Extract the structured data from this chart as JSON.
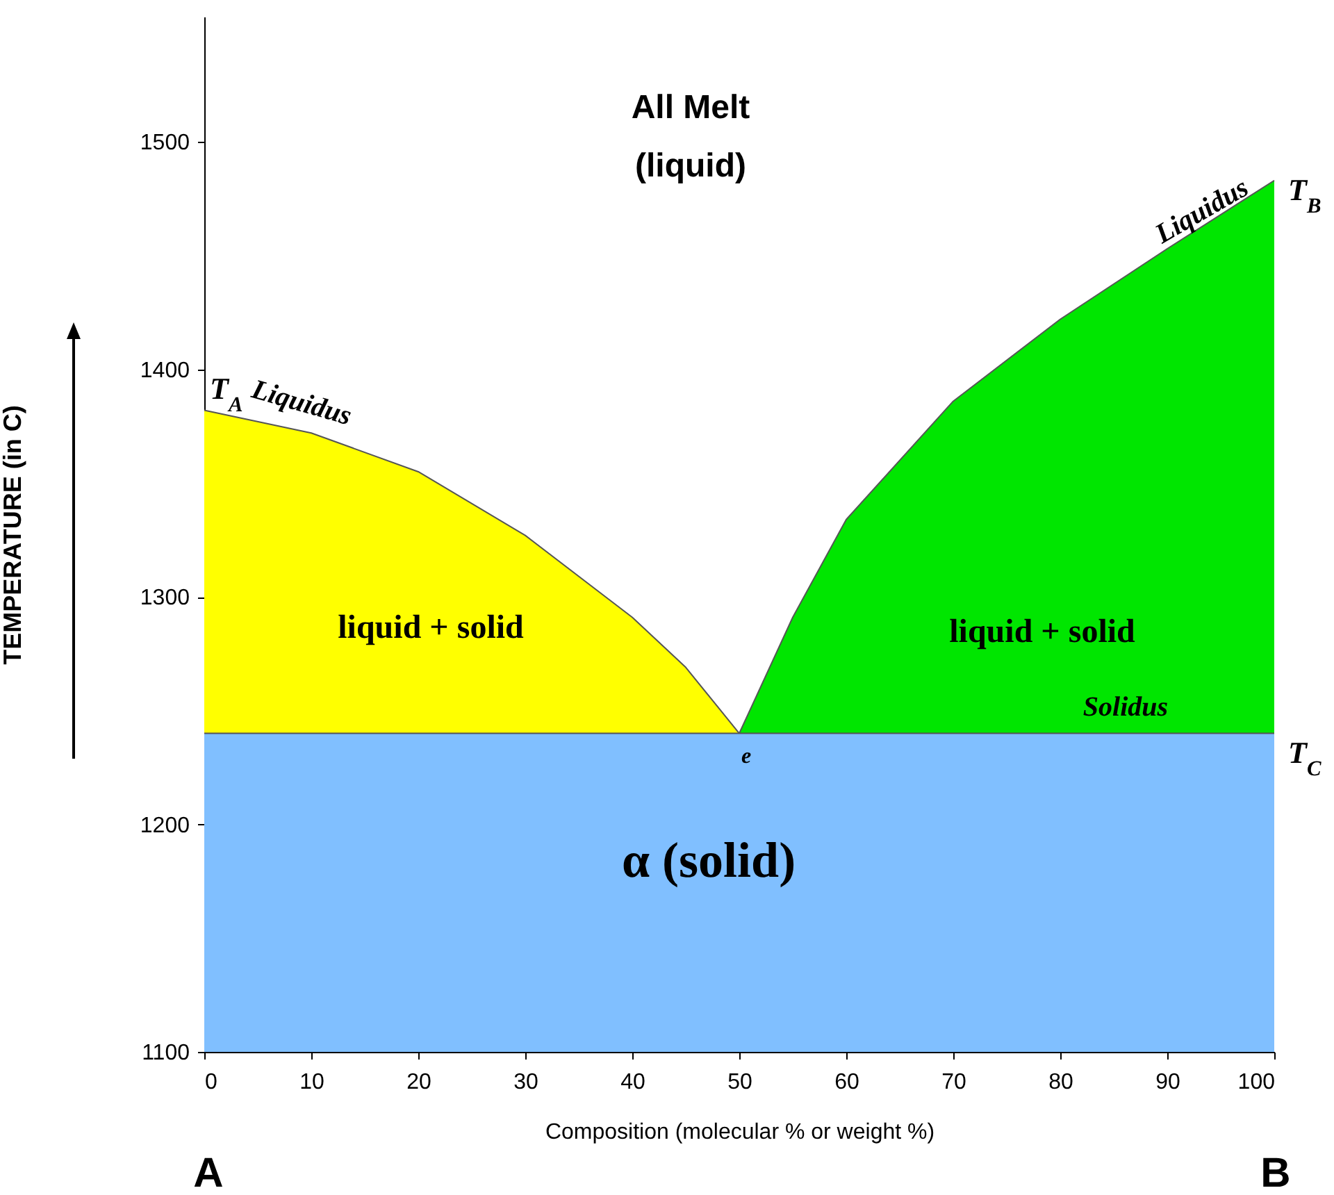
{
  "chart_data": {
    "type": "area",
    "xlabel": "Composition  (molecular % or weight %)",
    "ylabel": "TEMPERATURE   (in C)",
    "xlim": [
      0,
      100
    ],
    "ylim": [
      1100,
      1555
    ],
    "xticks": [
      0,
      10,
      20,
      30,
      40,
      50,
      60,
      70,
      80,
      90,
      100
    ],
    "yticks": [
      1100,
      1200,
      1300,
      1400,
      1500
    ],
    "series": [
      {
        "color": "#ffff00",
        "x": [
          0,
          10,
          20,
          30,
          40,
          45,
          50
        ],
        "values": [
          1382,
          1372,
          1355,
          1327,
          1291,
          1269,
          1240
        ]
      },
      {
        "color": "#00e600",
        "x": [
          50,
          55,
          60,
          70,
          80,
          90,
          100
        ],
        "values": [
          1240,
          1291,
          1334,
          1386,
          1422,
          1453,
          1483
        ]
      },
      {
        "color": "#80bfff",
        "x": [
          0,
          100
        ],
        "values": [
          1240,
          1240
        ]
      }
    ],
    "grid": false,
    "annotations": [
      "All Melt",
      "(liquid)",
      "Liquidus",
      "Liquidus",
      "T$_{A}$",
      "T$_{B}$",
      "T$_{C}$",
      "liquid + solid",
      "liquid + solid",
      "Solidus",
      "e",
      "α (solid)",
      "A",
      "B"
    ]
  }
}
